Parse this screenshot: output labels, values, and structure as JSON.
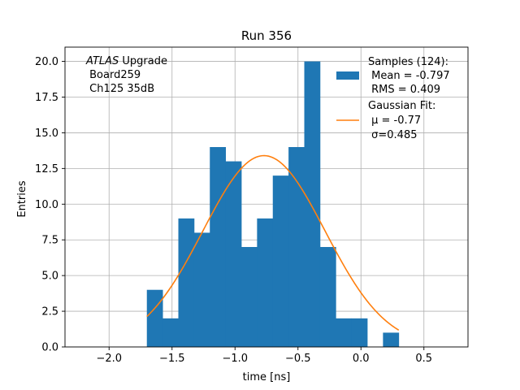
{
  "chart_data": {
    "type": "bar",
    "title": "Run 356",
    "xlabel": "time [ns]",
    "ylabel": "Entries",
    "xlim": [
      -2.35,
      0.85
    ],
    "ylim": [
      0,
      21
    ],
    "xticks": [
      -2.0,
      -1.5,
      -1.0,
      -0.5,
      0.0,
      0.5
    ],
    "xtick_labels": [
      "−2.0",
      "−1.5",
      "−1.0",
      "−0.5",
      "0.0",
      "0.5"
    ],
    "yticks": [
      0,
      2.5,
      5.0,
      7.5,
      10.0,
      12.5,
      15.0,
      17.5,
      20.0
    ],
    "ytick_labels": [
      "0.0",
      "2.5",
      "5.0",
      "7.5",
      "10.0",
      "12.5",
      "15.0",
      "17.5",
      "20.0"
    ],
    "grid": true,
    "bin_width": 0.125,
    "histogram": {
      "name": "Samples (124)",
      "color": "#1f77b4",
      "bins": [
        {
          "x0": -1.7,
          "count": 4
        },
        {
          "x0": -1.575,
          "count": 2
        },
        {
          "x0": -1.45,
          "count": 9
        },
        {
          "x0": -1.325,
          "count": 8
        },
        {
          "x0": -1.2,
          "count": 14
        },
        {
          "x0": -1.075,
          "count": 13
        },
        {
          "x0": -0.95,
          "count": 7
        },
        {
          "x0": -0.825,
          "count": 9
        },
        {
          "x0": -0.7,
          "count": 12
        },
        {
          "x0": -0.575,
          "count": 14
        },
        {
          "x0": -0.45,
          "count": 20
        },
        {
          "x0": -0.325,
          "count": 7
        },
        {
          "x0": -0.2,
          "count": 2
        },
        {
          "x0": -0.075,
          "count": 2
        },
        {
          "x0": 0.175,
          "count": 1
        }
      ]
    },
    "fit": {
      "name": "Gaussian Fit",
      "color": "#ff7f0e",
      "mu": -0.77,
      "sigma": 0.485,
      "amplitude": 13.4,
      "x_range": [
        -1.7,
        0.3
      ]
    },
    "legend": {
      "position": "top-right",
      "samples_lines": [
        "Samples (124):",
        " Mean = -0.797",
        " RMS = 0.409"
      ],
      "fit_lines": [
        "Gaussian Fit:",
        " μ = -0.77",
        " σ=0.485"
      ]
    },
    "annotation": {
      "position": "top-left",
      "lines": [
        "ATLAS Upgrade",
        " Board259",
        " Ch125 35dB"
      ]
    }
  }
}
